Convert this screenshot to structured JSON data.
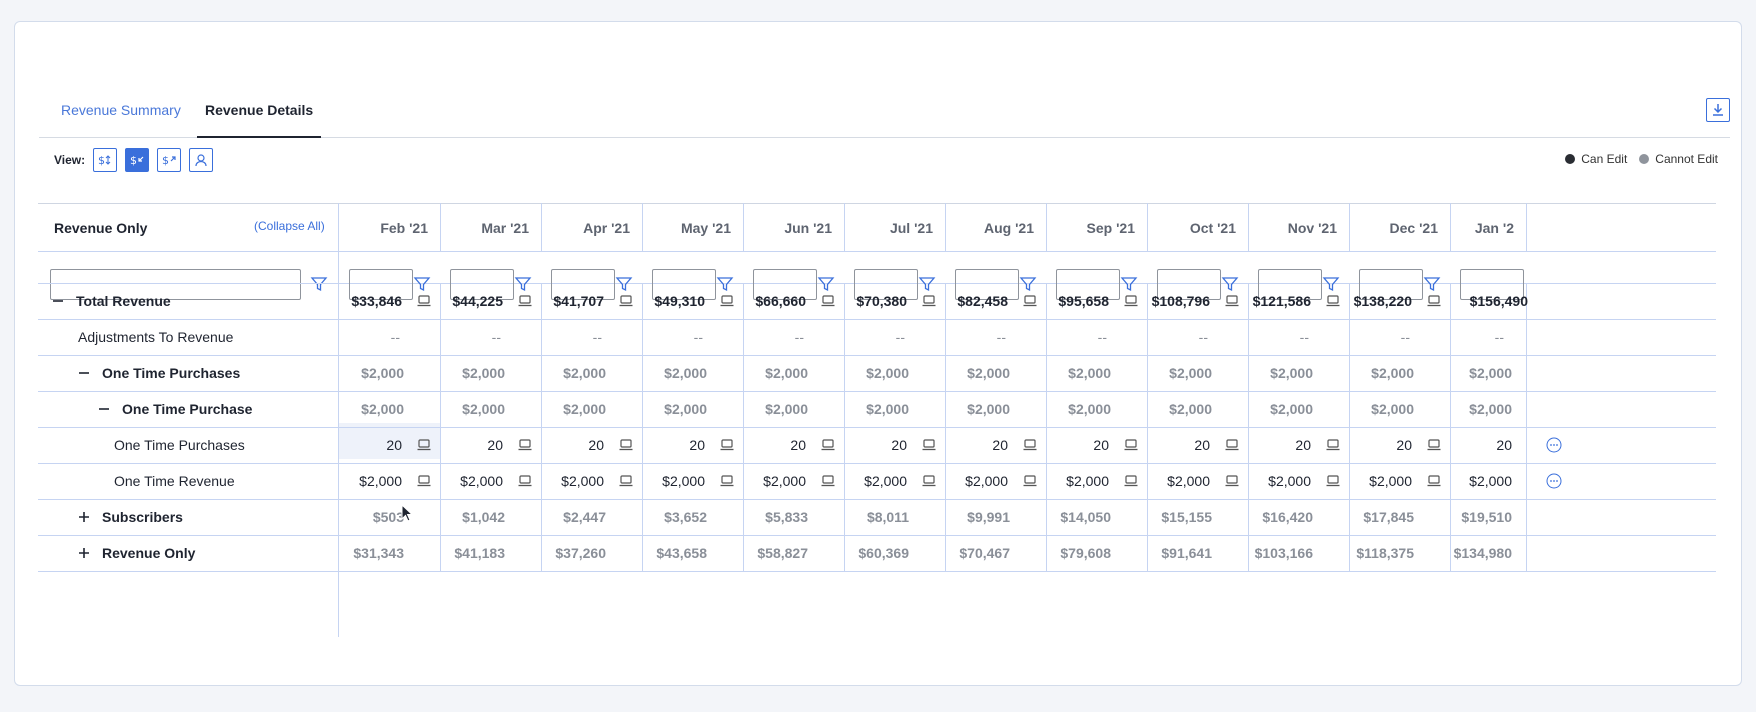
{
  "tabs": [
    {
      "label": "Revenue Summary"
    },
    {
      "label": "Revenue Details"
    }
  ],
  "view": {
    "label": "View:"
  },
  "legend": {
    "can_edit": "Can Edit",
    "cannot_edit": "Cannot Edit"
  },
  "table": {
    "first_header": "Revenue Only",
    "collapse_all": "(Collapse All)",
    "months": [
      "Feb '21",
      "Mar '21",
      "Apr '21",
      "May '21",
      "Jun '21",
      "Jul '21",
      "Aug '21",
      "Sep '21",
      "Oct '21",
      "Nov '21",
      "Dec '21",
      "Jan '2"
    ],
    "rows": [
      {
        "label": "Total Revenue",
        "toggle": "minus",
        "values": [
          "$33,846",
          "$44,225",
          "$41,707",
          "$49,310",
          "$66,660",
          "$70,380",
          "$82,458",
          "$95,658",
          "$108,796",
          "$121,586",
          "$138,220",
          "$156,490"
        ]
      },
      {
        "label": "Adjustments To Revenue",
        "toggle": "",
        "values": [
          "--",
          "--",
          "--",
          "--",
          "--",
          "--",
          "--",
          "--",
          "--",
          "--",
          "--",
          "--"
        ]
      },
      {
        "label": "One Time Purchases",
        "toggle": "minus",
        "values": [
          "$2,000",
          "$2,000",
          "$2,000",
          "$2,000",
          "$2,000",
          "$2,000",
          "$2,000",
          "$2,000",
          "$2,000",
          "$2,000",
          "$2,000",
          "$2,000"
        ]
      },
      {
        "label": "One Time Purchase",
        "toggle": "minus",
        "values": [
          "$2,000",
          "$2,000",
          "$2,000",
          "$2,000",
          "$2,000",
          "$2,000",
          "$2,000",
          "$2,000",
          "$2,000",
          "$2,000",
          "$2,000",
          "$2,000"
        ]
      },
      {
        "label": "One Time Purchases",
        "toggle": "",
        "values": [
          "20",
          "20",
          "20",
          "20",
          "20",
          "20",
          "20",
          "20",
          "20",
          "20",
          "20",
          "20"
        ]
      },
      {
        "label": "One Time Revenue",
        "toggle": "",
        "values": [
          "$2,000",
          "$2,000",
          "$2,000",
          "$2,000",
          "$2,000",
          "$2,000",
          "$2,000",
          "$2,000",
          "$2,000",
          "$2,000",
          "$2,000",
          "$2,000"
        ]
      },
      {
        "label": "Subscribers",
        "toggle": "plus",
        "values": [
          "$503",
          "$1,042",
          "$2,447",
          "$3,652",
          "$5,833",
          "$8,011",
          "$9,991",
          "$14,050",
          "$15,155",
          "$16,420",
          "$17,845",
          "$19,510"
        ]
      },
      {
        "label": "Revenue Only",
        "toggle": "plus",
        "values": [
          "$31,343",
          "$41,183",
          "$37,260",
          "$43,658",
          "$58,827",
          "$60,369",
          "$70,467",
          "$79,608",
          "$91,641",
          "$103,166",
          "$118,375",
          "$134,980"
        ]
      }
    ]
  }
}
